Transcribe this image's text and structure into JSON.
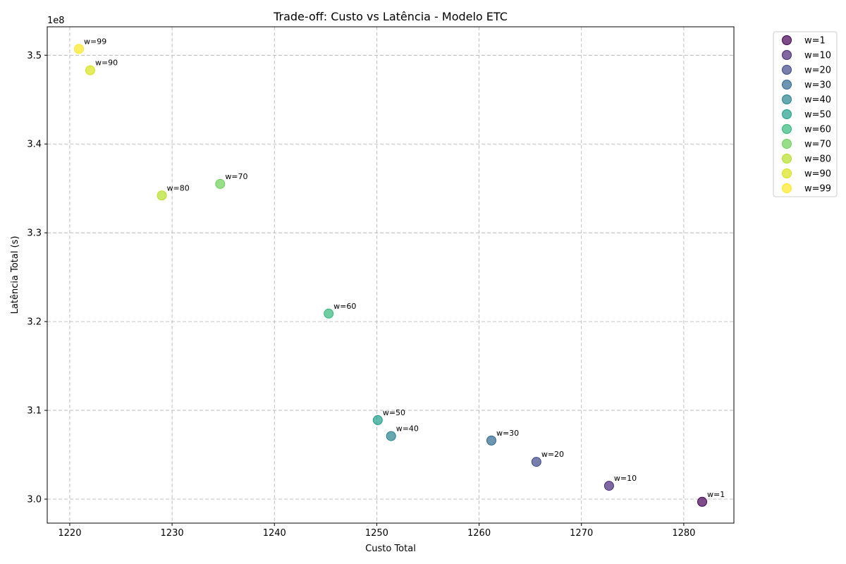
{
  "chart_data": {
    "type": "scatter",
    "title": "Trade-off: Custo vs Latência - Modelo ETC",
    "xlabel": "Custo Total",
    "ylabel": "Latência Total (s)",
    "y_offset_label": "1e8",
    "xlim": [
      1217.8,
      1284.9
    ],
    "ylim": [
      2.973,
      3.532
    ],
    "x_ticks": [
      1220,
      1230,
      1240,
      1250,
      1260,
      1270,
      1280
    ],
    "y_ticks": [
      3.0,
      3.1,
      3.2,
      3.3,
      3.4,
      3.5
    ],
    "y_tick_labels": [
      "3.0",
      "3.1",
      "3.2",
      "3.3",
      "3.4",
      "3.5"
    ],
    "grid": true,
    "legend_position": "outside-right",
    "series": [
      {
        "name": "w=1",
        "label": "w=1",
        "x": 1281.8,
        "y": 2.997,
        "color": "#440154"
      },
      {
        "name": "w=10",
        "label": "w=10",
        "x": 1272.7,
        "y": 3.015,
        "color": "#482878"
      },
      {
        "name": "w=20",
        "label": "w=20",
        "x": 1265.6,
        "y": 3.042,
        "color": "#3e4989"
      },
      {
        "name": "w=30",
        "label": "w=30",
        "x": 1261.2,
        "y": 3.066,
        "color": "#31688e"
      },
      {
        "name": "w=40",
        "label": "w=40",
        "x": 1251.4,
        "y": 3.071,
        "color": "#26828e"
      },
      {
        "name": "w=50",
        "label": "w=50",
        "x": 1250.1,
        "y": 3.089,
        "color": "#1f9e89"
      },
      {
        "name": "w=60",
        "label": "w=60",
        "x": 1245.3,
        "y": 3.209,
        "color": "#35b779"
      },
      {
        "name": "w=70",
        "label": "w=70",
        "x": 1234.7,
        "y": 3.355,
        "color": "#6ece58"
      },
      {
        "name": "w=80",
        "label": "w=80",
        "x": 1229.0,
        "y": 3.342,
        "color": "#b5de2b"
      },
      {
        "name": "w=90",
        "label": "w=90",
        "x": 1222.0,
        "y": 3.483,
        "color": "#d8e219"
      },
      {
        "name": "w=99",
        "label": "w=99",
        "x": 1220.9,
        "y": 3.507,
        "color": "#fde725"
      }
    ]
  }
}
